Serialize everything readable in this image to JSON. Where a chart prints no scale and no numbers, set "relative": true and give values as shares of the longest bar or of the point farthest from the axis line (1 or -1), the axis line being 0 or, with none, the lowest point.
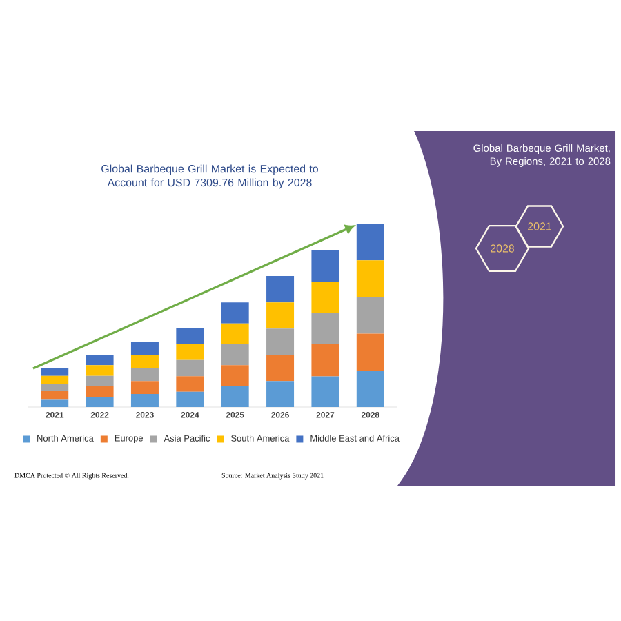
{
  "chart_data": {
    "type": "bar",
    "stacked": true,
    "relative": true,
    "title": "Global Barbeque Grill Market is Expected to Account for USD 7309.76 Million by 2028",
    "subtitle": "Global Barbeque Grill Market, By Regions, 2021 to 2028",
    "categories": [
      "2021",
      "2022",
      "2023",
      "2024",
      "2025",
      "2026",
      "2027",
      "2028"
    ],
    "series": [
      {
        "name": "North America",
        "color": "#5b9bd5",
        "values": [
          0.043,
          0.056,
          0.071,
          0.084,
          0.114,
          0.142,
          0.167,
          0.197
        ]
      },
      {
        "name": "Europe",
        "color": "#ed7d31",
        "values": [
          0.043,
          0.058,
          0.071,
          0.084,
          0.114,
          0.142,
          0.175,
          0.203
        ]
      },
      {
        "name": "Asia Pacific",
        "color": "#a5a5a5",
        "values": [
          0.041,
          0.056,
          0.071,
          0.089,
          0.114,
          0.144,
          0.172,
          0.2
        ]
      },
      {
        "name": "South America",
        "color": "#ffc000",
        "values": [
          0.043,
          0.058,
          0.071,
          0.086,
          0.114,
          0.142,
          0.17,
          0.2
        ]
      },
      {
        "name": "Middle East and Africa",
        "color": "#4472c4",
        "values": [
          0.043,
          0.056,
          0.071,
          0.086,
          0.114,
          0.144,
          0.172,
          0.2
        ]
      }
    ],
    "legend": "bottom",
    "annotations": [
      "2028",
      "2021",
      "DMCA Protected © All Rights Reserved.",
      "Source: Market Analysis Study 2021"
    ]
  }
}
